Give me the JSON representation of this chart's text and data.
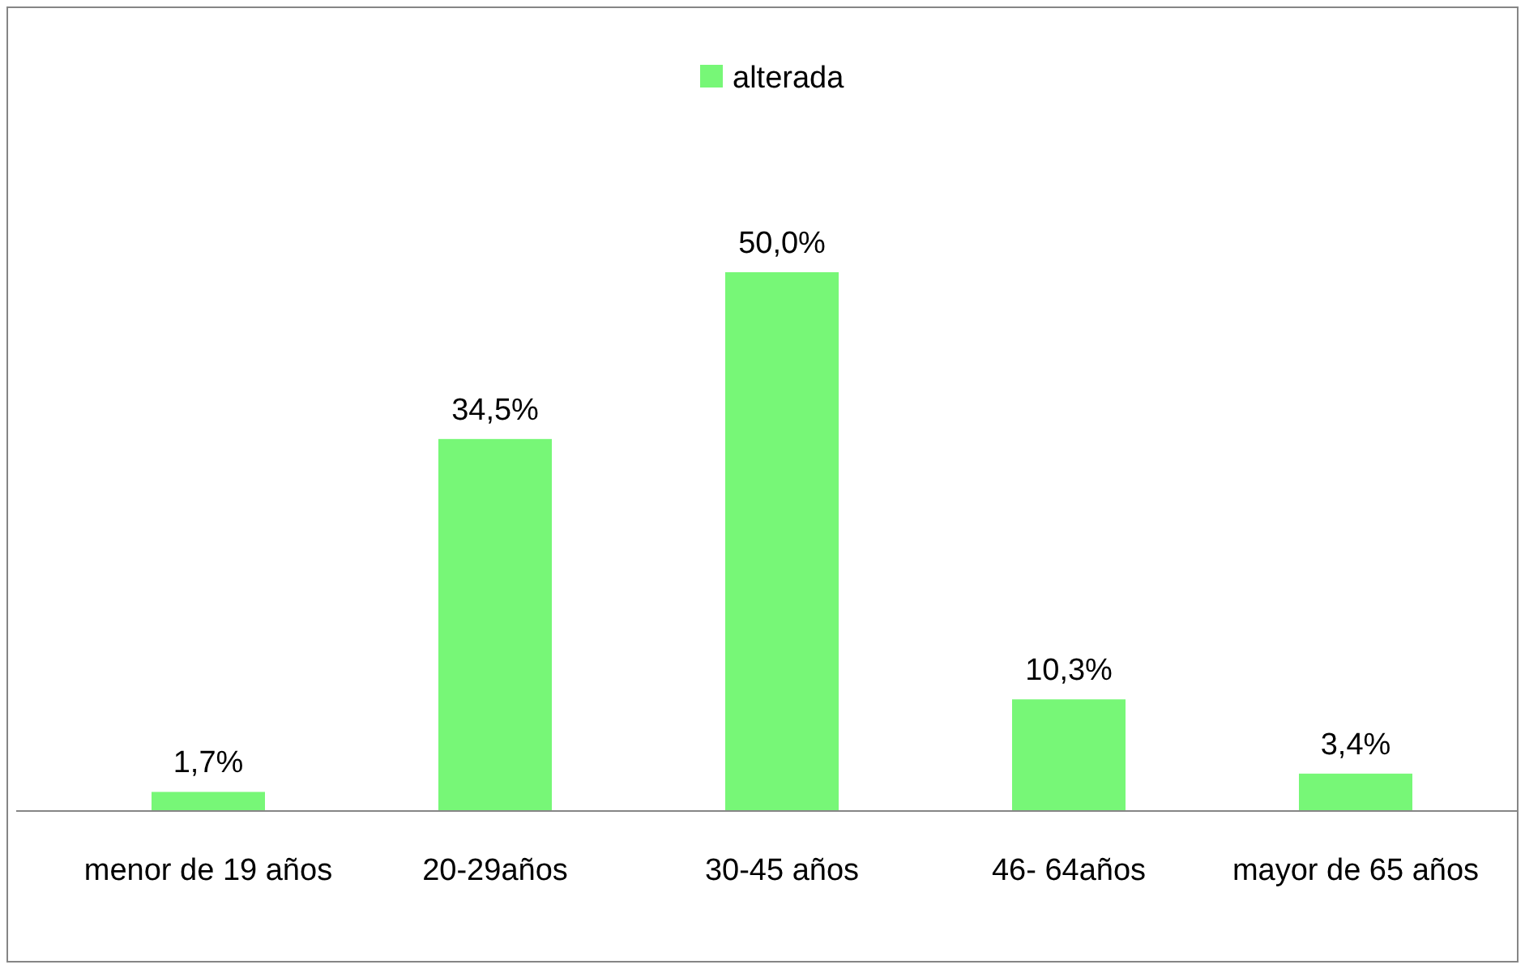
{
  "chart_data": {
    "type": "bar",
    "categories": [
      "menor de 19 años",
      "20-29años",
      "30-45 años",
      "46- 64años",
      "mayor de 65 años"
    ],
    "series": [
      {
        "name": "alterada",
        "color": "#77f777",
        "values": [
          1.7,
          34.5,
          50.0,
          10.3,
          3.4
        ],
        "value_labels": [
          "1,7%",
          "34,5%",
          "50,0%",
          "10,3%",
          "3,4%"
        ]
      }
    ],
    "relative": false,
    "legend": "top"
  }
}
